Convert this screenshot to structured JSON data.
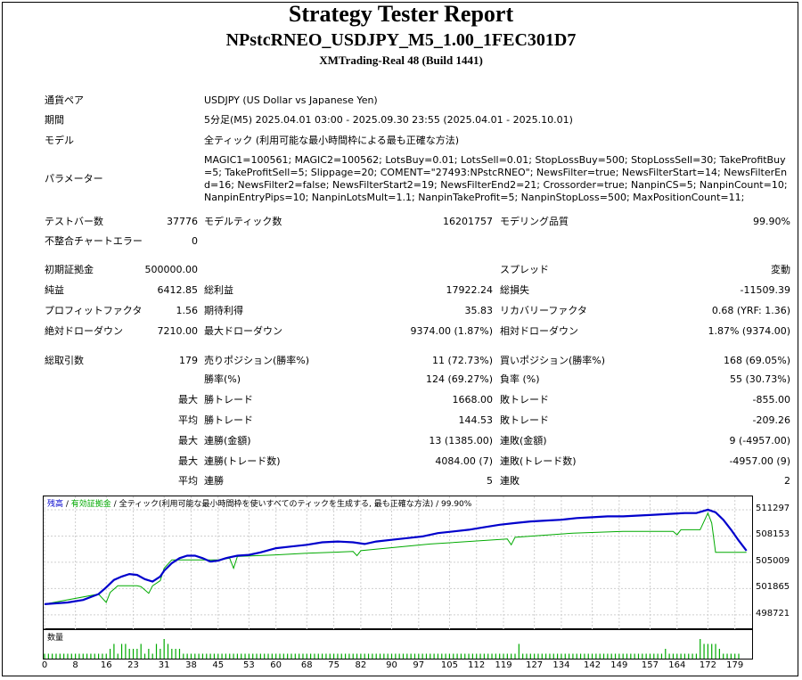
{
  "header": {
    "title": "Strategy Tester Report",
    "ea_name": "NPstcRNEO_USDJPY_M5_1.00_1FEC301D7",
    "server": "XMTrading-Real 48 (Build 1441)"
  },
  "info": {
    "pair_label": "通貨ペア",
    "pair_value": "USDJPY (US Dollar vs Japanese Yen)",
    "period_label": "期間",
    "period_value": "5分足(M5) 2025.04.01 03:00 - 2025.09.30 23:55 (2025.04.01 - 2025.10.01)",
    "model_label": "モデル",
    "model_value": "全ティック (利用可能な最小時間枠による最も正確な方法)",
    "params_label": "パラメーター",
    "params_value": "MAGIC1=100561; MAGIC2=100562; LotsBuy=0.01; LotsSell=0.01; StopLossBuy=500; StopLossSell=30; TakeProfitBuy=5; TakeProfitSell=5; Slippage=20; COMENT=\"27493:NPstcRNEO\"; NewsFilter=true; NewsFilterStart=14; NewsFilterEnd=16; NewsFilter2=false; NewsFilterStart2=19; NewsFilterEnd2=21; Crossorder=true; NanpinCS=5; NanpinCount=10; NanpinEntryPips=10; NanpinLotsMult=1.1; NanpinTakeProfit=5; NanpinStopLoss=500; MaxPositionCount=11;"
  },
  "stats": {
    "bars_label": "テストバー数",
    "bars_value": "37776",
    "ticks_label": "モデルティック数",
    "ticks_value": "16201757",
    "quality_label": "モデリング品質",
    "quality_value": "99.90%",
    "mismatch_label": "不整合チャートエラー",
    "mismatch_value": "0",
    "deposit_label": "初期証拠金",
    "deposit_value": "500000.00",
    "spread_label": "スプレッド",
    "spread_value": "変動",
    "net_label": "純益",
    "net_value": "6412.85",
    "gross_profit_label": "総利益",
    "gross_profit_value": "17922.24",
    "gross_loss_label": "総損失",
    "gross_loss_value": "-11509.39",
    "pf_label": "プロフィットファクタ",
    "pf_value": "1.56",
    "expected_label": "期待利得",
    "expected_value": "35.83",
    "recovery_label": "リカバリーファクタ",
    "recovery_value": "0.68 (YRF: 1.36)",
    "abs_dd_label": "絶対ドローダウン",
    "abs_dd_value": "7210.00",
    "max_dd_label": "最大ドローダウン",
    "max_dd_value": "9374.00 (1.87%)",
    "rel_dd_label": "相対ドローダウン",
    "rel_dd_value": "1.87% (9374.00)",
    "trades_label": "総取引数",
    "trades_value": "179",
    "short_label": "売りポジション(勝率%)",
    "short_value": "11 (72.73%)",
    "long_label": "買いポジション(勝率%)",
    "long_value": "168 (69.05%)",
    "winrate_label": "勝率(%)",
    "winrate_value": "124 (69.27%)",
    "lossrate_label": "負率 (%)",
    "lossrate_value": "55 (30.73%)",
    "max_label": "最大",
    "avg_label": "平均",
    "win_trade_label": "勝トレード",
    "loss_trade_label": "敗トレード",
    "max_win_value": "1668.00",
    "max_loss_value": "-855.00",
    "avg_win_value": "144.53",
    "avg_loss_value": "-209.26",
    "cons_win_amt_label": "連勝(金額)",
    "cons_win_amt_value": "13 (1385.00)",
    "cons_loss_amt_label": "連敗(金額)",
    "cons_loss_amt_value": "9 (-4957.00)",
    "cons_win_cnt_label": "連勝(トレード数)",
    "cons_win_cnt_value": "4084.00 (7)",
    "cons_loss_cnt_label": "連敗(トレード数)",
    "cons_loss_cnt_value": "-4957.00 (9)",
    "avg_win_streak_label": "連勝",
    "avg_win_streak_value": "5",
    "avg_loss_streak_label": "連敗",
    "avg_loss_streak_value": "2"
  },
  "colors": {
    "balance": "#0000cc",
    "equity": "#00aa00",
    "volume": "#00aa00",
    "grid": "#cfcfcf"
  },
  "chart_data": {
    "type": "line",
    "legend": {
      "balance": "残高",
      "sep1": " / ",
      "equity": "有効証拠金",
      "sep2": " / ",
      "model": "全ティック(利用可能な最小時間枠を使いすべてのティックを生成する, 最も正確な方法)",
      "sep3": " / ",
      "quality": "99.90%"
    },
    "ylim": [
      497000,
      513000
    ],
    "xlim": [
      0,
      183
    ],
    "y_ticks": [
      "511297",
      "508153",
      "505009",
      "501865",
      "498721"
    ],
    "y_tick_values": [
      511297,
      508153,
      505009,
      501865,
      498721
    ],
    "x_ticks": [
      "0",
      "8",
      "16",
      "23",
      "31",
      "38",
      "45",
      "53",
      "60",
      "68",
      "75",
      "82",
      "90",
      "97",
      "105",
      "112",
      "119",
      "127",
      "134",
      "142",
      "149",
      "157",
      "164",
      "172",
      "179"
    ],
    "x_tick_values": [
      0,
      8,
      16,
      23,
      31,
      38,
      45,
      53,
      60,
      68,
      75,
      82,
      90,
      97,
      105,
      112,
      119,
      127,
      134,
      142,
      149,
      157,
      164,
      172,
      179
    ],
    "balance": [
      [
        0,
        500000
      ],
      [
        6,
        500200
      ],
      [
        10,
        500500
      ],
      [
        14,
        501200
      ],
      [
        16,
        502000
      ],
      [
        18,
        502900
      ],
      [
        20,
        503300
      ],
      [
        22,
        503600
      ],
      [
        24,
        503500
      ],
      [
        26,
        503000
      ],
      [
        28,
        502700
      ],
      [
        30,
        503300
      ],
      [
        31,
        504000
      ],
      [
        33,
        504900
      ],
      [
        35,
        505500
      ],
      [
        37,
        505800
      ],
      [
        39,
        505800
      ],
      [
        41,
        505500
      ],
      [
        43,
        505100
      ],
      [
        45,
        505200
      ],
      [
        47,
        505500
      ],
      [
        50,
        505800
      ],
      [
        53,
        505900
      ],
      [
        56,
        506200
      ],
      [
        60,
        506700
      ],
      [
        64,
        506900
      ],
      [
        68,
        507100
      ],
      [
        72,
        507400
      ],
      [
        76,
        507500
      ],
      [
        80,
        507400
      ],
      [
        83,
        507200
      ],
      [
        86,
        507500
      ],
      [
        90,
        507700
      ],
      [
        94,
        507900
      ],
      [
        98,
        508100
      ],
      [
        102,
        508500
      ],
      [
        106,
        508700
      ],
      [
        110,
        508900
      ],
      [
        114,
        509200
      ],
      [
        118,
        509500
      ],
      [
        122,
        509700
      ],
      [
        126,
        509900
      ],
      [
        130,
        510000
      ],
      [
        134,
        510100
      ],
      [
        138,
        510300
      ],
      [
        142,
        510400
      ],
      [
        146,
        510500
      ],
      [
        150,
        510500
      ],
      [
        154,
        510600
      ],
      [
        158,
        510700
      ],
      [
        162,
        510800
      ],
      [
        166,
        510900
      ],
      [
        169,
        510900
      ],
      [
        172,
        511300
      ],
      [
        174,
        511000
      ],
      [
        176,
        510100
      ],
      [
        178,
        508900
      ],
      [
        180,
        507600
      ],
      [
        182,
        506400
      ]
    ],
    "equity": [
      [
        0,
        500000
      ],
      [
        14,
        501200
      ],
      [
        15,
        500700
      ],
      [
        16,
        500200
      ],
      [
        17,
        501400
      ],
      [
        19,
        502200
      ],
      [
        22,
        502200
      ],
      [
        24,
        502200
      ],
      [
        25,
        502100
      ],
      [
        26,
        501700
      ],
      [
        27,
        501300
      ],
      [
        28,
        502200
      ],
      [
        30,
        502800
      ],
      [
        31,
        504300
      ],
      [
        33,
        505300
      ],
      [
        45,
        505300
      ],
      [
        48,
        505500
      ],
      [
        49,
        504300
      ],
      [
        50,
        505700
      ],
      [
        60,
        505900
      ],
      [
        68,
        506100
      ],
      [
        80,
        506300
      ],
      [
        81,
        505800
      ],
      [
        82,
        506400
      ],
      [
        100,
        507200
      ],
      [
        120,
        507800
      ],
      [
        121,
        507100
      ],
      [
        122,
        508000
      ],
      [
        137,
        508500
      ],
      [
        150,
        508700
      ],
      [
        163,
        508700
      ],
      [
        164,
        508300
      ],
      [
        165,
        508900
      ],
      [
        170,
        508900
      ],
      [
        172,
        510900
      ],
      [
        173,
        509700
      ],
      [
        174,
        506200
      ],
      [
        182,
        506200
      ]
    ],
    "volume_name": "数量",
    "volume_bars": [
      1,
      1,
      1,
      1,
      1,
      1,
      1,
      1,
      1,
      1,
      1,
      1,
      1,
      1,
      1,
      1,
      1,
      2,
      3,
      1,
      3,
      3,
      2,
      2,
      2,
      3,
      1,
      2,
      1,
      3,
      2,
      4,
      3,
      2,
      2,
      2,
      1,
      1,
      1,
      1,
      1,
      1,
      1,
      1,
      1,
      1,
      1,
      1,
      1,
      1,
      1,
      1,
      1,
      1,
      1,
      1,
      1,
      1,
      1,
      1,
      1,
      1,
      1,
      1,
      1,
      1,
      1,
      1,
      1,
      1,
      1,
      1,
      1,
      1,
      1,
      1,
      1,
      1,
      1,
      1,
      1,
      1,
      1,
      1,
      1,
      1,
      1,
      1,
      1,
      1,
      1,
      1,
      1,
      1,
      1,
      1,
      1,
      1,
      1,
      1,
      1,
      1,
      1,
      1,
      1,
      1,
      1,
      1,
      1,
      1,
      1,
      1,
      1,
      1,
      1,
      1,
      1,
      1,
      1,
      1,
      1,
      1,
      1,
      3,
      1,
      1,
      1,
      1,
      1,
      1,
      1,
      1,
      1,
      1,
      1,
      1,
      1,
      1,
      1,
      1,
      1,
      1,
      1,
      1,
      1,
      1,
      1,
      1,
      1,
      1,
      1,
      1,
      1,
      1,
      1,
      1,
      1,
      1,
      1,
      1,
      1,
      2,
      1,
      1,
      1,
      1,
      1,
      1,
      1,
      1,
      4,
      3,
      3,
      3,
      3,
      2,
      1,
      1,
      1,
      1,
      1
    ]
  }
}
